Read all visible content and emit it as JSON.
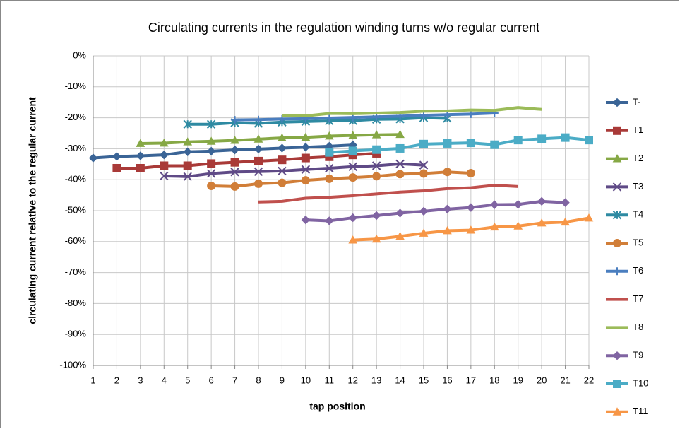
{
  "chart_data": {
    "type": "line",
    "title": "Circulating currents in the regulation winding turns w/o regular current",
    "x_label": "tap position",
    "y_label": "circulating current relative to the regular current",
    "categories": [
      1,
      2,
      3,
      4,
      5,
      6,
      7,
      8,
      9,
      10,
      11,
      12,
      13,
      14,
      15,
      16,
      17,
      18,
      19,
      20,
      21,
      22
    ],
    "ylim": [
      -100,
      0
    ],
    "yticks": [
      {
        "value": 0,
        "label": "0%"
      },
      {
        "value": -10,
        "label": "-10%"
      },
      {
        "value": -20,
        "label": "-20%"
      },
      {
        "value": -30,
        "label": "-30%"
      },
      {
        "value": -40,
        "label": "-40%"
      },
      {
        "value": -50,
        "label": "-50%"
      },
      {
        "value": -60,
        "label": "-60%"
      },
      {
        "value": -70,
        "label": "-70%"
      },
      {
        "value": -80,
        "label": "-80%"
      },
      {
        "value": -90,
        "label": "-90%"
      },
      {
        "value": -100,
        "label": "-100%"
      }
    ],
    "grid": true,
    "legend": "right",
    "series": [
      {
        "name": "T-",
        "color": "#3a6496",
        "marker": "diamond",
        "values": [
          -33,
          -32.5,
          -32.3,
          -32,
          -31,
          -30.8,
          -30.4,
          -30.1,
          -29.8,
          -29.5,
          -29.2,
          -28.8,
          null,
          null,
          null,
          null,
          null,
          null,
          null,
          null,
          null,
          null
        ]
      },
      {
        "name": "T1",
        "color": "#a93a38",
        "marker": "square",
        "values": [
          null,
          -36.3,
          -36.3,
          -35.5,
          -35.5,
          -34.8,
          -34.4,
          -34,
          -33.6,
          -33,
          -32.6,
          -32,
          -31.5,
          null,
          null,
          null,
          null,
          null,
          null,
          null,
          null,
          null
        ]
      },
      {
        "name": "T2",
        "color": "#86a845",
        "marker": "triangle",
        "values": [
          null,
          null,
          -28.3,
          -28.2,
          -27.8,
          -27.6,
          -27.3,
          -26.9,
          -26.5,
          -26.3,
          -25.9,
          -25.7,
          -25.5,
          -25.4,
          null,
          null,
          null,
          null,
          null,
          null,
          null,
          null
        ]
      },
      {
        "name": "T3",
        "color": "#5f4a86",
        "marker": "x",
        "values": [
          null,
          null,
          null,
          -38.8,
          -39,
          -38,
          -37.5,
          -37.4,
          -37.2,
          -36.7,
          -36.3,
          -35.8,
          -35.5,
          -34.9,
          -35.3,
          null,
          null,
          null,
          null,
          null,
          null,
          null
        ]
      },
      {
        "name": "T4",
        "color": "#2e8aa2",
        "marker": "star",
        "values": [
          null,
          null,
          null,
          null,
          -22.1,
          -22.1,
          -21.6,
          -21.8,
          -21.4,
          -21.2,
          -21,
          -20.9,
          -20.5,
          -20.4,
          -20,
          -20.2,
          null,
          null,
          null,
          null,
          null,
          null
        ]
      },
      {
        "name": "T5",
        "color": "#d17e38",
        "marker": "circle",
        "values": [
          null,
          null,
          null,
          null,
          null,
          -42,
          -42.2,
          -41.3,
          -41,
          -40.2,
          -39.7,
          -39.3,
          -38.9,
          -38.2,
          -38,
          -37.5,
          -37.9,
          null,
          null,
          null,
          null,
          null
        ]
      },
      {
        "name": "T6",
        "color": "#4a7ebf",
        "marker": "plus",
        "values": [
          null,
          null,
          null,
          null,
          null,
          null,
          -20.7,
          -20.6,
          -20.4,
          -20.3,
          -20.1,
          -19.9,
          -19.7,
          -19.5,
          -19.2,
          -19,
          -18.8,
          -18.5,
          null,
          null,
          null,
          null
        ]
      },
      {
        "name": "T7",
        "color": "#c0504d",
        "marker": "none",
        "values": [
          null,
          null,
          null,
          null,
          null,
          null,
          null,
          -47.2,
          -47,
          -46,
          -45.7,
          -45.2,
          -44.6,
          -44,
          -43.6,
          -42.9,
          -42.6,
          -41.8,
          -42.2,
          null,
          null,
          null
        ]
      },
      {
        "name": "T8",
        "color": "#9bbb59",
        "marker": "none",
        "values": [
          null,
          null,
          null,
          null,
          null,
          null,
          null,
          null,
          -19.2,
          -19.4,
          -18.6,
          -18.7,
          -18.5,
          -18.3,
          -17.9,
          -17.8,
          -17.5,
          -17.6,
          -16.7,
          -17.3,
          null,
          null
        ]
      },
      {
        "name": "T9",
        "color": "#8064a2",
        "marker": "diamond",
        "values": [
          null,
          null,
          null,
          null,
          null,
          null,
          null,
          null,
          null,
          -53,
          -53.3,
          -52.3,
          -51.6,
          -50.8,
          -50.2,
          -49.5,
          -49,
          -48.1,
          -48,
          -47,
          -47.4,
          null
        ]
      },
      {
        "name": "T10",
        "color": "#4bacc6",
        "marker": "square",
        "values": [
          null,
          null,
          null,
          null,
          null,
          null,
          null,
          null,
          null,
          null,
          -31.2,
          -30.7,
          -30.3,
          -29.9,
          -28.5,
          -28.3,
          -28.1,
          -28.7,
          -27.2,
          -26.8,
          -26.4,
          -27.2
        ]
      },
      {
        "name": "T11",
        "color": "#f79646",
        "marker": "triangle",
        "values": [
          null,
          null,
          null,
          null,
          null,
          null,
          null,
          null,
          null,
          null,
          null,
          -59.5,
          -59.2,
          -58.3,
          -57.3,
          -56.5,
          -56.3,
          -55.3,
          -55,
          -54,
          -53.7,
          -52.4
        ]
      }
    ]
  }
}
